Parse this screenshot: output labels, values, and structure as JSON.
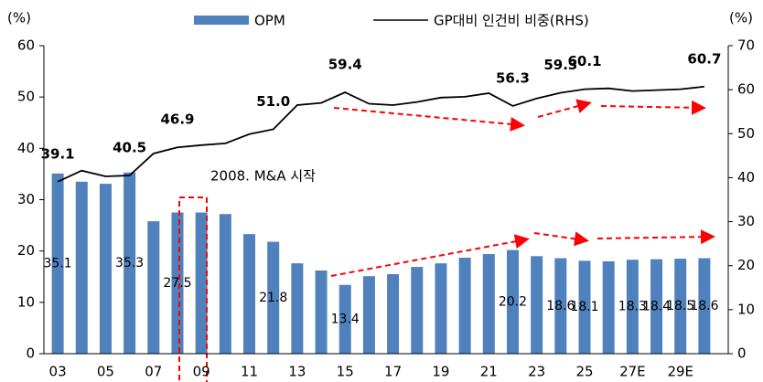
{
  "chart_data": {
    "type": "bar_line",
    "y_label": "(%)",
    "y2_label": "(%)",
    "annotations": [
      "2008. M&A 시작"
    ],
    "categories": [
      "03",
      null,
      "05",
      null,
      "07",
      null,
      "09",
      null,
      "11",
      null,
      "13",
      null,
      "15",
      null,
      "17",
      null,
      "19",
      null,
      "21",
      null,
      "23",
      null,
      "25",
      null,
      "27E",
      null,
      "29E",
      null
    ],
    "series": [
      {
        "name": "OPM",
        "type": "bar",
        "color": "#4f81bd",
        "values": [
          35.1,
          33.5,
          33.1,
          35.3,
          25.8,
          27.5,
          27.5,
          27.2,
          23.3,
          21.8,
          17.6,
          16.2,
          13.4,
          15.1,
          15.5,
          16.9,
          17.6,
          18.7,
          19.4,
          20.2,
          19.0,
          18.6,
          18.1,
          18.0,
          18.3,
          18.4,
          18.5,
          18.6
        ],
        "value_labels": [
          "35.1",
          null,
          null,
          "35.3",
          null,
          "27.5",
          null,
          null,
          null,
          "21.8",
          null,
          null,
          "13.4",
          null,
          null,
          null,
          null,
          null,
          null,
          "20.2",
          null,
          "18.6",
          "18.1",
          null,
          "18.3",
          "18.4",
          "18.5",
          "18.6"
        ]
      },
      {
        "name": "GP대비 인건비 비중(RHS)",
        "type": "line",
        "axis": "y2",
        "color": "#000000",
        "values": [
          39.1,
          41.6,
          40.3,
          40.5,
          45.5,
          46.9,
          47.4,
          47.8,
          49.9,
          51.0,
          56.5,
          57.0,
          59.4,
          56.8,
          56.5,
          57.2,
          58.2,
          58.4,
          59.2,
          56.3,
          58.0,
          59.3,
          60.1,
          60.3,
          59.7,
          59.9,
          60.1,
          60.7
        ],
        "value_labels": [
          "39.1",
          null,
          null,
          "40.5",
          null,
          "46.9",
          null,
          null,
          null,
          "51.0",
          null,
          null,
          "59.4",
          null,
          null,
          null,
          null,
          null,
          null,
          "56.3",
          null,
          "59.3",
          "60.1",
          null,
          null,
          null,
          null,
          "60.7"
        ]
      }
    ],
    "ylim": [
      0,
      60
    ],
    "yticks": [
      0,
      10,
      20,
      30,
      40,
      50,
      60
    ],
    "y2lim": [
      0,
      70
    ],
    "y2ticks": [
      0,
      10,
      20,
      30,
      40,
      50,
      60,
      70
    ]
  }
}
